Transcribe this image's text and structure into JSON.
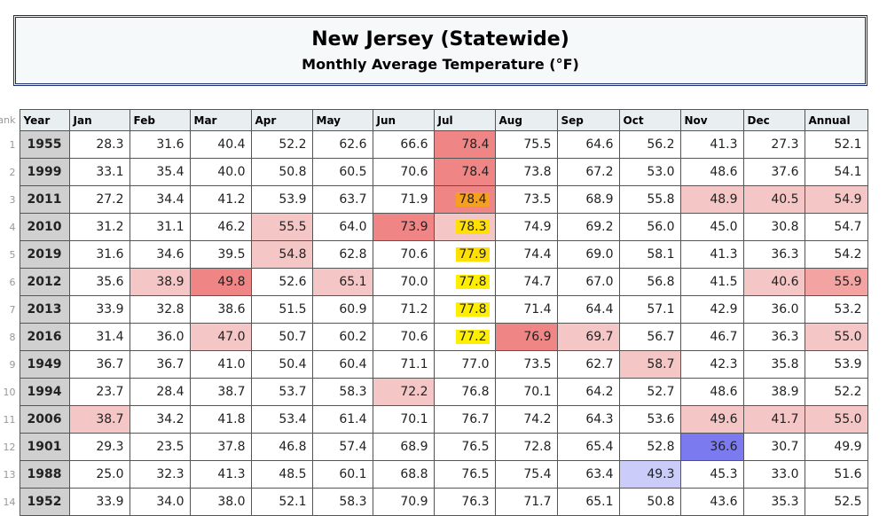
{
  "header": {
    "title": "New Jersey (Statewide)",
    "subtitle": "Monthly Average Temperature (°F)"
  },
  "table": {
    "columns": [
      "Rank",
      "Year",
      "Jan",
      "Feb",
      "Mar",
      "Apr",
      "May",
      "Jun",
      "Jul",
      "Aug",
      "Sep",
      "Oct",
      "Nov",
      "Dec",
      "Annual"
    ],
    "rows": [
      [
        "1",
        "1955",
        "28.3",
        "31.6",
        "40.4",
        "52.2",
        "62.6",
        "66.6",
        "78.4",
        "75.5",
        "64.6",
        "56.2",
        "41.3",
        "27.3",
        "52.1"
      ],
      [
        "2",
        "1999",
        "33.1",
        "35.4",
        "40.0",
        "50.8",
        "60.5",
        "70.6",
        "78.4",
        "73.8",
        "67.2",
        "53.0",
        "48.6",
        "37.6",
        "54.1"
      ],
      [
        "3",
        "2011",
        "27.2",
        "34.4",
        "41.2",
        "53.9",
        "63.7",
        "71.9",
        "78.4",
        "73.5",
        "68.9",
        "55.8",
        "48.9",
        "40.5",
        "54.9"
      ],
      [
        "4",
        "2010",
        "31.2",
        "31.1",
        "46.2",
        "55.5",
        "64.0",
        "73.9",
        "78.3",
        "74.9",
        "69.2",
        "56.0",
        "45.0",
        "30.8",
        "54.7"
      ],
      [
        "5",
        "2019",
        "31.6",
        "34.6",
        "39.5",
        "54.8",
        "62.8",
        "70.6",
        "77.9",
        "74.4",
        "69.0",
        "58.1",
        "41.3",
        "36.3",
        "54.2"
      ],
      [
        "6",
        "2012",
        "35.6",
        "38.9",
        "49.8",
        "52.6",
        "65.1",
        "70.0",
        "77.8",
        "74.7",
        "67.0",
        "56.8",
        "41.5",
        "40.6",
        "55.9"
      ],
      [
        "7",
        "2013",
        "33.9",
        "32.8",
        "38.6",
        "51.5",
        "60.9",
        "71.2",
        "77.8",
        "71.4",
        "64.4",
        "57.1",
        "42.9",
        "36.0",
        "53.2"
      ],
      [
        "8",
        "2016",
        "31.4",
        "36.0",
        "47.0",
        "50.7",
        "60.2",
        "70.6",
        "77.2",
        "76.9",
        "69.7",
        "56.7",
        "46.7",
        "36.3",
        "55.0"
      ],
      [
        "9",
        "1949",
        "36.7",
        "36.7",
        "41.0",
        "50.4",
        "60.4",
        "71.1",
        "77.0",
        "73.5",
        "62.7",
        "58.7",
        "42.3",
        "35.8",
        "53.9"
      ],
      [
        "10",
        "1994",
        "23.7",
        "28.4",
        "38.7",
        "53.7",
        "58.3",
        "72.2",
        "76.8",
        "70.1",
        "64.2",
        "52.7",
        "48.6",
        "38.9",
        "52.2"
      ],
      [
        "11",
        "2006",
        "38.7",
        "34.2",
        "41.8",
        "53.4",
        "61.4",
        "70.1",
        "76.7",
        "74.2",
        "64.3",
        "53.6",
        "49.6",
        "41.7",
        "55.0"
      ],
      [
        "12",
        "1901",
        "29.3",
        "23.5",
        "37.8",
        "46.8",
        "57.4",
        "68.9",
        "76.5",
        "72.8",
        "65.4",
        "52.8",
        "36.6",
        "30.7",
        "49.9"
      ],
      [
        "13",
        "1988",
        "25.0",
        "32.3",
        "41.3",
        "48.5",
        "60.1",
        "68.8",
        "76.5",
        "75.4",
        "63.4",
        "49.3",
        "45.3",
        "33.0",
        "51.6"
      ],
      [
        "14",
        "1952",
        "33.9",
        "34.0",
        "38.0",
        "52.1",
        "58.3",
        "70.9",
        "76.3",
        "71.7",
        "65.1",
        "50.8",
        "43.6",
        "35.3",
        "52.5"
      ]
    ]
  }
}
